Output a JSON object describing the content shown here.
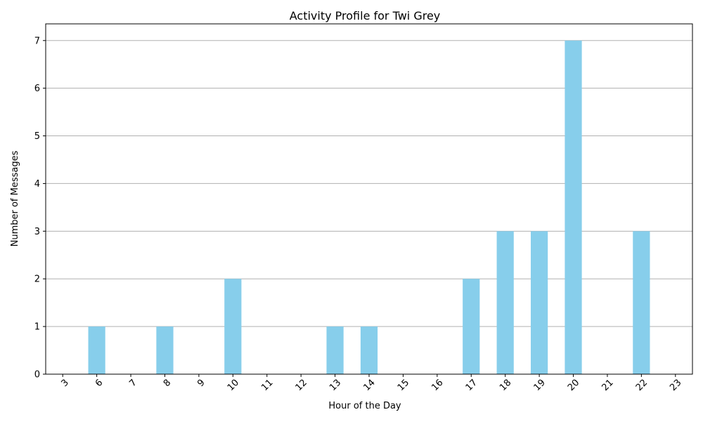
{
  "chart_data": {
    "type": "bar",
    "title": "Activity Profile for Twi Grey",
    "xlabel": "Hour of the Day",
    "ylabel": "Number of Messages",
    "categories": [
      "3",
      "6",
      "7",
      "8",
      "9",
      "10",
      "11",
      "12",
      "13",
      "14",
      "15",
      "16",
      "17",
      "18",
      "19",
      "20",
      "21",
      "22",
      "23"
    ],
    "values": [
      0,
      1,
      0,
      1,
      0,
      2,
      0,
      0,
      1,
      1,
      0,
      0,
      2,
      3,
      3,
      7,
      0,
      3,
      0
    ],
    "ylim": [
      0,
      7.35
    ],
    "yticks": [
      0,
      1,
      2,
      3,
      4,
      5,
      6,
      7
    ],
    "grid": "horizontal",
    "xtick_rotation": 45,
    "bar_color": "#87ceeb",
    "grid_color": "#b0b0b0"
  }
}
